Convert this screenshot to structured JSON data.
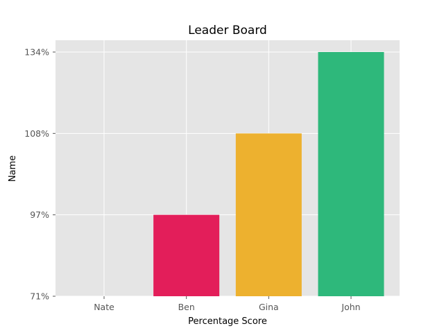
{
  "chart_data": {
    "type": "bar",
    "title": "Leader Board",
    "xlabel": "Percentage Score",
    "ylabel": "Name",
    "categories": [
      "Nate",
      "Ben",
      "Gina",
      "John"
    ],
    "values": [
      0,
      1,
      2,
      3
    ],
    "bar_colors": [
      "#ffffff",
      "#e31e5a",
      "#edb12f",
      "#2eb87b"
    ],
    "ylim": [
      0,
      3
    ],
    "yticks": [
      "71%",
      "97%",
      "108%",
      "134%"
    ],
    "grid": true,
    "background_color": "#e5e5e5",
    "grid_color": "#ffffff"
  }
}
